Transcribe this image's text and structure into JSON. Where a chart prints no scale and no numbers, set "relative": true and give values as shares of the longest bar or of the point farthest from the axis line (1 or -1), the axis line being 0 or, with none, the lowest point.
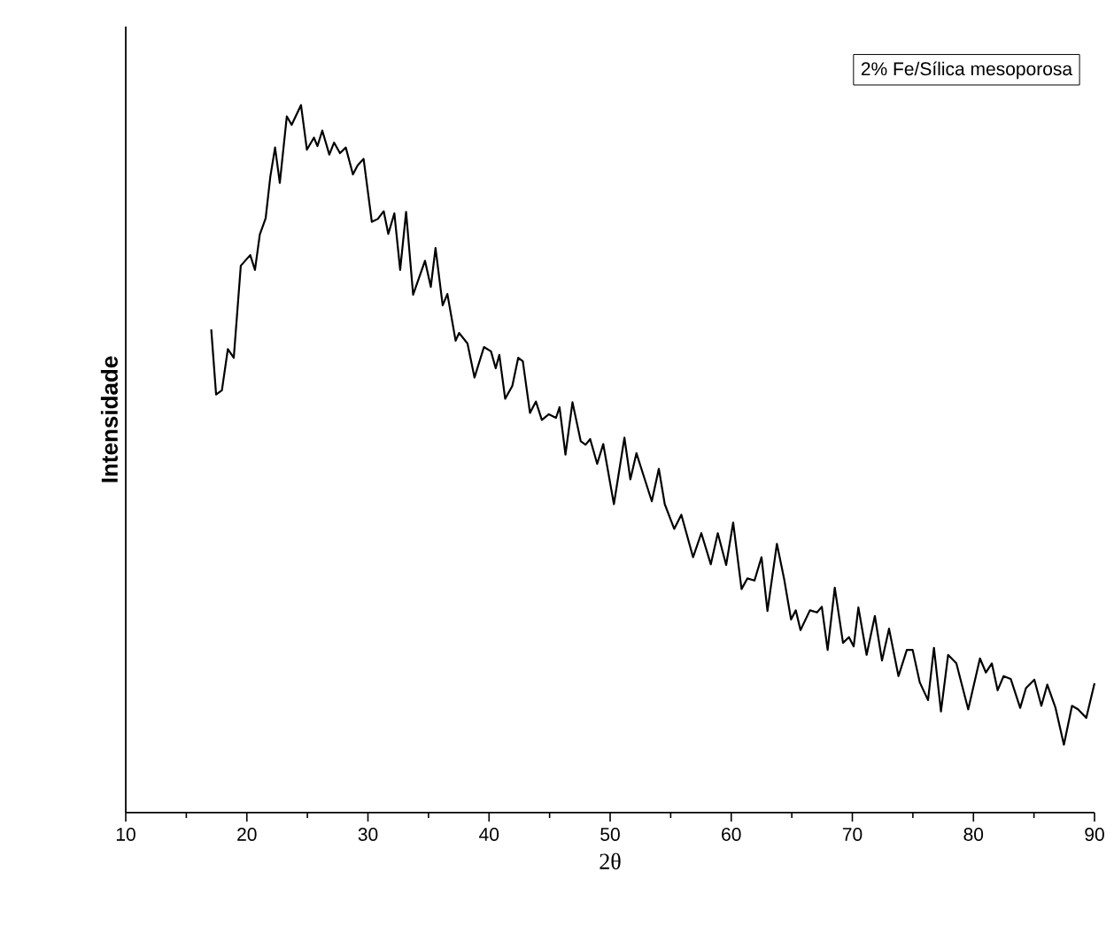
{
  "chart_data": {
    "type": "line",
    "relative": true,
    "xlabel": "2θ",
    "ylabel": "Intensidade",
    "xlim": [
      10,
      90
    ],
    "xticks": [
      10,
      20,
      30,
      40,
      50,
      60,
      70,
      80,
      90
    ],
    "legend": "top right",
    "grid": false,
    "series": [
      {
        "name": "2% Fe/Sílica mesoporosa",
        "color": "#000000",
        "x": [
          17.06,
          17.46,
          17.94,
          18.43,
          18.92,
          19.5,
          20.28,
          20.67,
          21.07,
          21.55,
          21.94,
          22.33,
          22.72,
          23.3,
          23.7,
          24.47,
          24.96,
          25.54,
          25.83,
          26.23,
          26.81,
          27.2,
          27.69,
          28.17,
          28.76,
          29.15,
          29.64,
          30.32,
          30.81,
          31.3,
          31.68,
          32.18,
          32.66,
          33.15,
          33.73,
          34.71,
          35.19,
          35.58,
          36.17,
          36.56,
          37.24,
          37.53,
          38.22,
          38.8,
          39.58,
          40.16,
          40.55,
          40.85,
          41.33,
          41.92,
          42.41,
          42.79,
          43.38,
          43.87,
          44.36,
          44.94,
          45.53,
          45.82,
          46.31,
          46.89,
          47.57,
          47.97,
          48.35,
          48.93,
          49.43,
          50.31,
          51.18,
          51.67,
          52.17,
          52.75,
          53.44,
          54.02,
          54.51,
          55.29,
          55.88,
          56.85,
          57.53,
          58.31,
          58.89,
          59.58,
          60.16,
          60.85,
          61.33,
          61.92,
          62.5,
          62.99,
          63.77,
          64.36,
          64.94,
          65.33,
          65.72,
          66.5,
          67.08,
          67.48,
          67.96,
          68.55,
          69.23,
          69.72,
          70.11,
          70.5,
          71.18,
          71.86,
          72.45,
          73.03,
          73.81,
          74.5,
          74.98,
          75.57,
          76.25,
          76.74,
          77.32,
          77.91,
          78.59,
          79.57,
          80.54,
          81.03,
          81.52,
          82.0,
          82.49,
          83.08,
          83.86,
          84.34,
          85.03,
          85.61,
          86.1,
          86.78,
          87.47,
          88.14,
          88.64,
          89.32,
          90.0
        ],
        "values": [
          0.683,
          0.591,
          0.597,
          0.655,
          0.643,
          0.773,
          0.788,
          0.767,
          0.817,
          0.84,
          0.899,
          0.94,
          0.89,
          0.984,
          0.972,
          1.0,
          0.937,
          0.954,
          0.942,
          0.964,
          0.93,
          0.947,
          0.932,
          0.94,
          0.902,
          0.915,
          0.924,
          0.835,
          0.839,
          0.85,
          0.818,
          0.847,
          0.767,
          0.849,
          0.732,
          0.78,
          0.743,
          0.798,
          0.717,
          0.733,
          0.667,
          0.678,
          0.663,
          0.615,
          0.658,
          0.652,
          0.628,
          0.647,
          0.585,
          0.603,
          0.643,
          0.638,
          0.565,
          0.581,
          0.555,
          0.563,
          0.558,
          0.573,
          0.506,
          0.58,
          0.525,
          0.52,
          0.528,
          0.493,
          0.521,
          0.436,
          0.53,
          0.471,
          0.508,
          0.477,
          0.44,
          0.486,
          0.436,
          0.401,
          0.421,
          0.361,
          0.395,
          0.351,
          0.395,
          0.35,
          0.41,
          0.316,
          0.331,
          0.328,
          0.361,
          0.285,
          0.38,
          0.331,
          0.273,
          0.286,
          0.258,
          0.286,
          0.283,
          0.291,
          0.23,
          0.318,
          0.24,
          0.248,
          0.235,
          0.29,
          0.223,
          0.278,
          0.215,
          0.26,
          0.193,
          0.23,
          0.23,
          0.184,
          0.159,
          0.233,
          0.143,
          0.223,
          0.211,
          0.146,
          0.218,
          0.198,
          0.211,
          0.173,
          0.193,
          0.189,
          0.148,
          0.176,
          0.188,
          0.151,
          0.181,
          0.148,
          0.096,
          0.151,
          0.146,
          0.134,
          0.183
        ]
      }
    ]
  }
}
